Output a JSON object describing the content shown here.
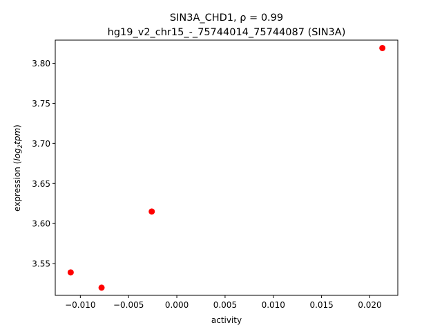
{
  "chart_data": {
    "type": "scatter",
    "title": "SIN3A_CHD1, ρ = 0.99",
    "subtitle": "hg19_v2_chr15_-_75744014_75744087 (SIN3A)",
    "xlabel": "activity",
    "ylabel": {
      "prefix": "expression (",
      "var_main": "log",
      "var_sub": "2",
      "var_rest": "tpm",
      "suffix": ")"
    },
    "xlim": [
      -0.0126,
      0.0229
    ],
    "ylim": [
      3.5104,
      3.8289
    ],
    "x_ticks": [
      -0.01,
      -0.005,
      0.0,
      0.005,
      0.01,
      0.015,
      0.02
    ],
    "x_tick_labels": [
      "−0.010",
      "−0.005",
      "0.000",
      "0.005",
      "0.010",
      "0.015",
      "0.020"
    ],
    "y_ticks": [
      3.55,
      3.6,
      3.65,
      3.7,
      3.75,
      3.8
    ],
    "y_tick_labels": [
      "3.55",
      "3.60",
      "3.65",
      "3.70",
      "3.75",
      "3.80"
    ],
    "points": [
      {
        "x": -0.011,
        "y": 3.539
      },
      {
        "x": -0.0078,
        "y": 3.52
      },
      {
        "x": -0.0026,
        "y": 3.615
      },
      {
        "x": 0.0213,
        "y": 3.819
      }
    ],
    "marker_color": "#ff0000",
    "grid": false
  }
}
